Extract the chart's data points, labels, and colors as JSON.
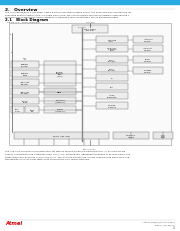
{
  "page_bg": "#ffffff",
  "header_bar_color": "#29abe2",
  "section2_title": "2.   Overview",
  "section21_title": "2.1   Block Diagram",
  "figure_label": "Figure 2-1.   Block Diagram",
  "section2_body_lines": [
    "The ATtiny25/45/85 is a low power CMOS 8-bit microcontroller based on the AVR enhanced RISC architecture. By",
    "executing powerful instructions in a single clock cycle, the ATtiny25/45/85 achieves throughputs approaching 1",
    "MIPS per MHz allowing the system designer to optimize power consumption versus processing speed."
  ],
  "body2_lines": [
    "The AVR core combines a rich instruction set with 32 general purpose working registers. All 32 registers are",
    "directly connected to the Arithmetic Logic Unit (ALU), allowing two independent registers to be accessed in one",
    "single instruction executed in one clock cycle. The resulting architecture is more code efficient while achieving",
    "throughputs up to ten times faster than conventional CISC microcontrollers."
  ],
  "footer_brand": "Atmel",
  "footer_right1": "ATtiny25/45/85 [DATASHEET]",
  "footer_right2": "7598D–AVR–08/12",
  "footer_page": "4",
  "box_fc": "#f0f0f0",
  "box_ec": "#555555",
  "bus_color": "#555555",
  "line_color": "#666666",
  "text_color": "#222222",
  "body_color": "#333333"
}
